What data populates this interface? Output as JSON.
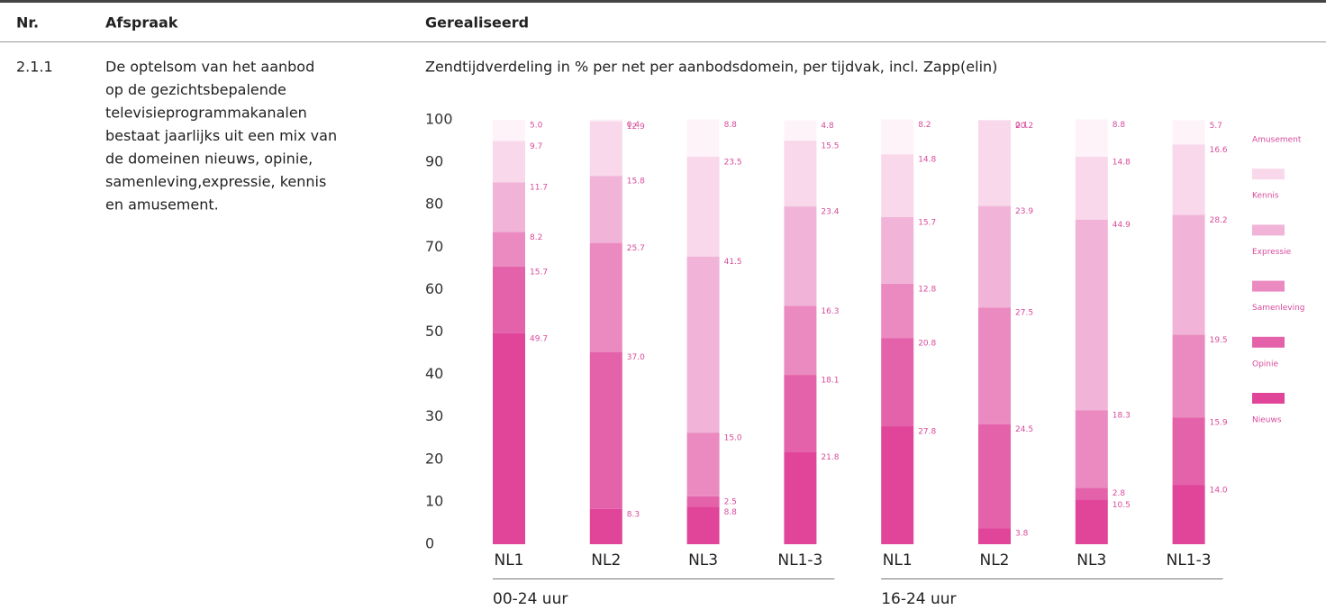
{
  "table": {
    "header": [
      "Nr.",
      "Afspraak",
      "Gerealiseerd"
    ],
    "rows": [
      {
        "nr": "2.1.1",
        "afspraak": [
          "De optelsom van het aanbod",
          "op de gezichtsbepalende",
          "televisieprogrammakanalen",
          "bestaat jaarlijks uit een mix van",
          "de domeinen nieuws, opinie,",
          "samenleving,expressie, kennis",
          "en amusement."
        ]
      }
    ]
  },
  "chart_data": {
    "type": "stacked_bar",
    "title": "Zendtijdverdeling in % per net per aanbodsdomein, per tijdvak, incl. Zapp(elin)",
    "categories": [
      "NL1",
      "NL2",
      "NL3",
      "NL1-3",
      "NL1",
      "NL2",
      "NL3",
      "NL1-3"
    ],
    "groups": [
      "00-24 uur",
      "16-24 uur"
    ],
    "ylim": [
      0,
      100
    ],
    "yticks": [
      0,
      10,
      20,
      30,
      40,
      50,
      60,
      70,
      80,
      90,
      100
    ],
    "series": [
      {
        "name": "Nieuws",
        "color": "#e0459a",
        "values": [
          49.7,
          8.3,
          8.8,
          21.8,
          27.8,
          3.8,
          10.5,
          14.0
        ],
        "value_labels": [
          "49.7",
          "8.3",
          "8.8",
          "21.8",
          "27.8",
          "3.8",
          "10.5",
          "14.0"
        ]
      },
      {
        "name": "Opinie",
        "color": "#e462aa",
        "values": [
          15.7,
          37.0,
          2.5,
          18.1,
          20.8,
          24.5,
          2.8,
          15.9
        ],
        "value_labels": [
          "15.7",
          "37.0",
          "2.5",
          "18.1",
          "20.8",
          "24.5",
          "2.8",
          "15.9"
        ]
      },
      {
        "name": "Samenleving",
        "color": "#ea8ac0",
        "values": [
          8.2,
          25.7,
          15.0,
          16.3,
          12.8,
          27.5,
          18.3,
          19.5
        ],
        "value_labels": [
          "8.2",
          "25.7",
          "15.0",
          "16.3",
          "12.8",
          "27.5",
          "18.3",
          "19.5"
        ]
      },
      {
        "name": "Expressie",
        "color": "#f1b4d8",
        "values": [
          11.7,
          15.8,
          41.5,
          23.4,
          15.7,
          23.9,
          44.9,
          28.2
        ],
        "value_labels": [
          "11.7",
          "15.8",
          "41.5",
          "23.4",
          "15.7",
          "23.9",
          "44.9",
          "28.2"
        ]
      },
      {
        "name": "Kennis",
        "color": "#f8d8ea",
        "values": [
          9.7,
          12.9,
          23.5,
          15.5,
          14.8,
          20.2,
          14.8,
          16.6
        ],
        "value_labels": [
          "9.7",
          "12.9",
          "23.5",
          "15.5",
          "14.8",
          "20.2",
          "14.8",
          "16.6"
        ]
      },
      {
        "name": "Amusement",
        "color": "#fdf3f9",
        "values": [
          5.0,
          0.4,
          8.8,
          4.8,
          8.2,
          0.1,
          8.8,
          5.7
        ],
        "value_labels": [
          "5.0",
          "0.4",
          "8.8",
          "4.8",
          "8.2",
          "0.1",
          "8.8",
          "5.7"
        ]
      }
    ]
  }
}
